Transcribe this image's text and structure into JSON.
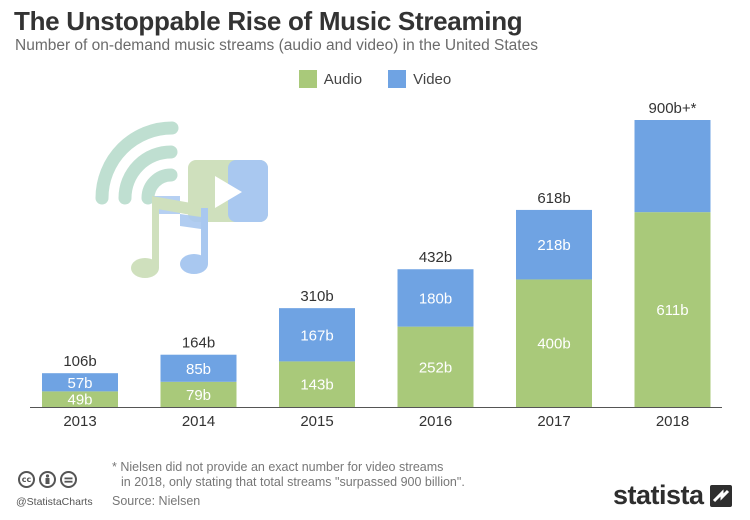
{
  "header": {
    "title": "The Unstoppable Rise of Music Streaming",
    "subtitle": "Number of on-demand music streams (audio and video) in the United States"
  },
  "legend": [
    {
      "label": "Audio",
      "color": "#a9c97a"
    },
    {
      "label": "Video",
      "color": "#6fa3e3"
    }
  ],
  "chart_data": {
    "type": "bar",
    "stacked": true,
    "categories": [
      "2013",
      "2014",
      "2015",
      "2016",
      "2017",
      "2018"
    ],
    "series": [
      {
        "name": "Audio",
        "values": [
          49,
          79,
          143,
          252,
          400,
          611
        ],
        "labels": [
          "49b",
          "79b",
          "143b",
          "252b",
          "400b",
          "611b"
        ],
        "color": "#a9c97a"
      },
      {
        "name": "Video",
        "values": [
          57,
          85,
          167,
          180,
          218,
          289
        ],
        "labels": [
          "57b",
          "85b",
          "167b",
          "180b",
          "218b",
          ""
        ],
        "color": "#6fa3e3"
      }
    ],
    "totals": [
      106,
      164,
      310,
      432,
      618,
      900
    ],
    "total_labels": [
      "106b",
      "164b",
      "310b",
      "432b",
      "618b",
      "900b+*"
    ],
    "title": "The Unstoppable Rise of Music Streaming",
    "ylabel": "",
    "ylim": [
      0,
      900
    ],
    "grid": false,
    "legend_position": "top-center"
  },
  "footnote": {
    "line1": "* Nielsen did not provide an exact number for video streams",
    "line2": "in 2018, only stating that total streams \"surpassed 900 billion\"."
  },
  "source": "Source: Nielsen",
  "handle": "@StatistaCharts",
  "brand": "statista",
  "icons": {
    "cc": "cc-license-icon",
    "attribution": "attribution-icon",
    "equal": "no-derivatives-icon"
  },
  "colors": {
    "audio": "#a9c97a",
    "video": "#6fa3e3",
    "text": "#333333",
    "label_inside": "#ffffff"
  }
}
